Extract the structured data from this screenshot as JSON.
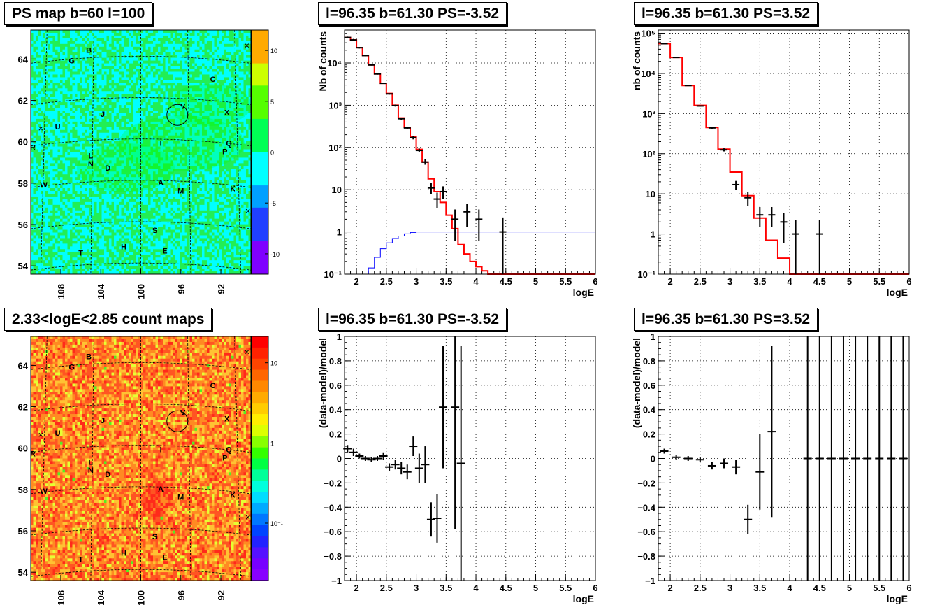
{
  "titles": {
    "ps_map": "PS map b=60 l=100",
    "spec_fit1": "l=96.35 b=61.30 PS=-3.52",
    "spec_fit2": "l=96.35 b=61.30 PS=3.52",
    "count_map": "2.33<logE<2.85 count maps",
    "res_fit1": "l=96.35 b=61.30 PS=-3.52",
    "res_fit2": "l=96.35 b=61.30 PS=3.52"
  },
  "chart_data": [
    {
      "id": "ps_map",
      "type": "heatmap",
      "xlabel": "",
      "ylabel": "",
      "xticks": [
        "108",
        "104",
        "100",
        "96",
        "92"
      ],
      "yticks": [
        "54",
        "56",
        "58",
        "60",
        "62",
        "64"
      ],
      "xlim": [
        111,
        89
      ],
      "ylim": [
        53.6,
        65.4
      ],
      "colorbar_ticks": [
        "10",
        "5",
        "0",
        "-5",
        "-10"
      ],
      "colorbar_range": [
        -12,
        12
      ],
      "source_labels": [
        {
          "t": "B",
          "l": 105.2,
          "b": 64.3
        },
        {
          "t": "G",
          "l": 106.9,
          "b": 63.8
        },
        {
          "t": "C",
          "l": 92.8,
          "b": 62.9
        },
        {
          "t": "V",
          "l": 95.8,
          "b": 61.6
        },
        {
          "t": "X",
          "l": 91.4,
          "b": 61.3
        },
        {
          "t": "J",
          "l": 103.8,
          "b": 61.2
        },
        {
          "t": "U",
          "l": 108.3,
          "b": 60.6
        },
        {
          "t": "R",
          "l": 110.8,
          "b": 59.6
        },
        {
          "t": "I",
          "l": 98.0,
          "b": 59.8
        },
        {
          "t": "Q",
          "l": 91.2,
          "b": 59.8
        },
        {
          "t": "P",
          "l": 91.6,
          "b": 59.4
        },
        {
          "t": "L",
          "l": 105.0,
          "b": 59.2
        },
        {
          "t": "N",
          "l": 105.0,
          "b": 58.8
        },
        {
          "t": "D",
          "l": 103.3,
          "b": 58.6
        },
        {
          "t": "W",
          "l": 109.7,
          "b": 57.8
        },
        {
          "t": "A",
          "l": 98.0,
          "b": 57.9
        },
        {
          "t": "M",
          "l": 96.0,
          "b": 57.5
        },
        {
          "t": "K",
          "l": 90.8,
          "b": 57.6
        },
        {
          "t": "S",
          "l": 98.6,
          "b": 55.6
        },
        {
          "t": "H",
          "l": 101.7,
          "b": 54.8
        },
        {
          "t": "E",
          "l": 97.6,
          "b": 54.6
        },
        {
          "t": "T",
          "l": 106.0,
          "b": 54.5
        }
      ],
      "circle": {
        "l": 96.35,
        "b": 61.3
      }
    },
    {
      "id": "count_map",
      "type": "heatmap",
      "xlabel": "",
      "ylabel": "",
      "xticks": [
        "108",
        "104",
        "100",
        "96",
        "92"
      ],
      "yticks": [
        "54",
        "56",
        "58",
        "60",
        "62",
        "64"
      ],
      "xlim": [
        111,
        89
      ],
      "ylim": [
        53.6,
        65.4
      ],
      "colorbar_ticks": [
        "10",
        "1",
        "10⁻¹"
      ],
      "colorbar_log": true,
      "circle": {
        "l": 96.35,
        "b": 61.3
      }
    },
    {
      "id": "spec_fit1",
      "type": "line",
      "xlabel": "logE",
      "ylabel": "Nb of counts",
      "xlim": [
        1.8,
        6.0
      ],
      "ylim_log": [
        0.1,
        60000
      ],
      "xticks": [
        "2",
        "2.5",
        "3",
        "3.5",
        "4",
        "4.5",
        "5",
        "5.5",
        "6"
      ],
      "yticks": [
        "10⁻¹",
        "1",
        "10",
        "10²",
        "10³",
        "10⁴"
      ],
      "grid": true,
      "series": [
        {
          "kind": "step",
          "color": "#ff0000",
          "edges": [
            1.8,
            1.9,
            2.0,
            2.1,
            2.2,
            2.3,
            2.4,
            2.5,
            2.6,
            2.7,
            2.8,
            2.9,
            3.0,
            3.1,
            3.2,
            3.3,
            3.4,
            3.5,
            3.6,
            3.7,
            3.8,
            3.9,
            4.0,
            4.1,
            4.2,
            6.0
          ],
          "values": [
            40000,
            35000,
            23000,
            15000,
            9000,
            5500,
            3300,
            1900,
            1000,
            500,
            300,
            180,
            90,
            45,
            18,
            9,
            5,
            2.5,
            1.2,
            0.5,
            0.3,
            0.2,
            0.15,
            0.12,
            0.1
          ]
        },
        {
          "kind": "step",
          "color": "#0000ff",
          "edges": [
            1.8,
            1.9,
            2.0,
            2.1,
            2.2,
            2.3,
            2.4,
            2.5,
            2.6,
            2.7,
            2.8,
            2.9,
            3.0,
            3.1,
            6.0
          ],
          "values": [
            0.06,
            0.07,
            0.08,
            0.1,
            0.14,
            0.25,
            0.4,
            0.55,
            0.7,
            0.8,
            0.9,
            0.97,
            1.0,
            1.0
          ]
        },
        {
          "kind": "points",
          "color": "#000000",
          "x": [
            1.85,
            1.95,
            2.05,
            2.15,
            2.25,
            2.35,
            2.45,
            2.55,
            2.65,
            2.75,
            2.85,
            2.95,
            3.05,
            3.15,
            3.25,
            3.35,
            3.45,
            3.65,
            3.85,
            4.05,
            4.45
          ],
          "y": [
            40000,
            35000,
            23000,
            15000,
            9000,
            5500,
            3300,
            1850,
            980,
            480,
            290,
            170,
            85,
            45,
            11,
            6,
            9,
            2,
            3,
            2,
            1
          ],
          "ylo": [
            38000,
            33000,
            22000,
            14500,
            8700,
            5300,
            3200,
            1780,
            930,
            450,
            270,
            155,
            76,
            39,
            8,
            3.6,
            6,
            0.6,
            1.3,
            0.6,
            0.1
          ],
          "yhi": [
            42000,
            37000,
            24000,
            15500,
            9300,
            5700,
            3400,
            1920,
            1030,
            510,
            310,
            185,
            94,
            52,
            14.5,
            8.5,
            12,
            3.4,
            4.7,
            3.4,
            2.2
          ]
        }
      ]
    },
    {
      "id": "spec_fit2",
      "type": "line",
      "xlabel": "logE",
      "ylabel": "nb of counts",
      "xlim": [
        1.8,
        6.0
      ],
      "ylim_log": [
        0.1,
        120000
      ],
      "xticks": [
        "2",
        "2.5",
        "3",
        "3.5",
        "4",
        "4.5",
        "5",
        "5.5",
        "6"
      ],
      "yticks": [
        "10⁻¹",
        "1",
        "10",
        "10²",
        "10³",
        "10⁴",
        "10⁵"
      ],
      "grid": true,
      "series": [
        {
          "kind": "step",
          "color": "#ff0000",
          "edges": [
            1.8,
            2.0,
            2.2,
            2.4,
            2.6,
            2.8,
            3.0,
            3.2,
            3.4,
            3.6,
            3.8,
            4.0,
            4.2,
            6.0
          ],
          "values": [
            55000,
            25000,
            5000,
            1600,
            450,
            130,
            35,
            9,
            2.5,
            0.7,
            0.25,
            0.1,
            0.1
          ]
        },
        {
          "kind": "points",
          "color": "#000000",
          "x": [
            1.9,
            2.1,
            2.3,
            2.5,
            2.7,
            2.9,
            3.1,
            3.3,
            3.5,
            3.7,
            3.9,
            4.1,
            4.5
          ],
          "y": [
            55000,
            25000,
            5000,
            1550,
            440,
            125,
            17,
            8,
            3,
            3,
            2,
            1,
            1
          ],
          "ylo": [
            54000,
            24500,
            4900,
            1500,
            420,
            114,
            12.5,
            5,
            1.5,
            1.5,
            0.6,
            0.1,
            0.1
          ],
          "yhi": [
            56000,
            25500,
            5100,
            1600,
            460,
            136,
            21,
            11,
            4.7,
            4.7,
            3.4,
            2.2,
            2.2
          ]
        }
      ]
    },
    {
      "id": "res_fit1",
      "type": "scatter",
      "xlabel": "logE",
      "ylabel": "(data-model)/model",
      "xlim": [
        1.8,
        6.0
      ],
      "ylim": [
        -1.0,
        1.0
      ],
      "xticks": [
        "2",
        "2.5",
        "3",
        "3.5",
        "4",
        "4.5",
        "5",
        "5.5",
        "6"
      ],
      "yticks": [
        "−1",
        "−0.8",
        "−0.6",
        "−0.4",
        "−0.2",
        "0",
        "0.2",
        "0.4",
        "0.6",
        "0.8",
        "1"
      ],
      "grid": true,
      "points": [
        {
          "x": 1.85,
          "y": 0.08,
          "e": 0.03
        },
        {
          "x": 1.95,
          "y": 0.05,
          "e": 0.03
        },
        {
          "x": 2.05,
          "y": 0.02,
          "e": 0.02
        },
        {
          "x": 2.15,
          "y": 0.0,
          "e": 0.02
        },
        {
          "x": 2.25,
          "y": -0.01,
          "e": 0.02
        },
        {
          "x": 2.35,
          "y": 0.0,
          "e": 0.02
        },
        {
          "x": 2.45,
          "y": 0.02,
          "e": 0.03
        },
        {
          "x": 2.55,
          "y": -0.07,
          "e": 0.03
        },
        {
          "x": 2.65,
          "y": -0.05,
          "e": 0.04
        },
        {
          "x": 2.75,
          "y": -0.08,
          "e": 0.05
        },
        {
          "x": 2.85,
          "y": -0.11,
          "e": 0.06
        },
        {
          "x": 2.95,
          "y": 0.1,
          "e": 0.08
        },
        {
          "x": 3.05,
          "y": -0.08,
          "e": 0.12
        },
        {
          "x": 3.15,
          "y": -0.05,
          "e": 0.15
        },
        {
          "x": 3.25,
          "y": -0.5,
          "e": 0.14
        },
        {
          "x": 3.35,
          "y": -0.49,
          "e": 0.2
        },
        {
          "x": 3.45,
          "y": 0.42,
          "e": 0.5
        },
        {
          "x": 3.65,
          "y": 0.42,
          "e": 1.0
        },
        {
          "x": 3.75,
          "y": -0.04,
          "e": 0.96
        }
      ]
    },
    {
      "id": "res_fit2",
      "type": "scatter",
      "xlabel": "logE",
      "ylabel": "(data-model)/model",
      "xlim": [
        1.8,
        6.0
      ],
      "ylim": [
        -1.0,
        1.0
      ],
      "xticks": [
        "2",
        "2.5",
        "3",
        "3.5",
        "4",
        "4.5",
        "5",
        "5.5",
        "6"
      ],
      "yticks": [
        "−1",
        "−0.8",
        "−0.6",
        "−0.4",
        "−0.2",
        "0",
        "0.2",
        "0.4",
        "0.6",
        "0.8",
        "1"
      ],
      "grid": true,
      "points": [
        {
          "x": 1.9,
          "y": 0.06,
          "e": 0.02
        },
        {
          "x": 2.1,
          "y": 0.01,
          "e": 0.02
        },
        {
          "x": 2.3,
          "y": 0.0,
          "e": 0.02
        },
        {
          "x": 2.5,
          "y": -0.01,
          "e": 0.02
        },
        {
          "x": 2.7,
          "y": -0.06,
          "e": 0.03
        },
        {
          "x": 2.9,
          "y": -0.04,
          "e": 0.04
        },
        {
          "x": 3.1,
          "y": -0.07,
          "e": 0.06
        },
        {
          "x": 3.3,
          "y": -0.5,
          "e": 0.12
        },
        {
          "x": 3.5,
          "y": -0.11,
          "e": 0.31
        },
        {
          "x": 3.7,
          "y": 0.22,
          "e": 0.7
        },
        {
          "x": 4.3,
          "y": 0.0,
          "e": 1.2
        },
        {
          "x": 4.5,
          "y": 0.0,
          "e": 1.2
        },
        {
          "x": 4.7,
          "y": 0.0,
          "e": 1.2
        },
        {
          "x": 4.9,
          "y": 0.0,
          "e": 1.2
        },
        {
          "x": 5.1,
          "y": 0.0,
          "e": 1.2
        },
        {
          "x": 5.3,
          "y": 0.0,
          "e": 1.2
        },
        {
          "x": 5.5,
          "y": 0.0,
          "e": 1.2
        },
        {
          "x": 5.7,
          "y": 0.0,
          "e": 1.2
        },
        {
          "x": 5.9,
          "y": 0.0,
          "e": 1.2
        }
      ]
    }
  ]
}
